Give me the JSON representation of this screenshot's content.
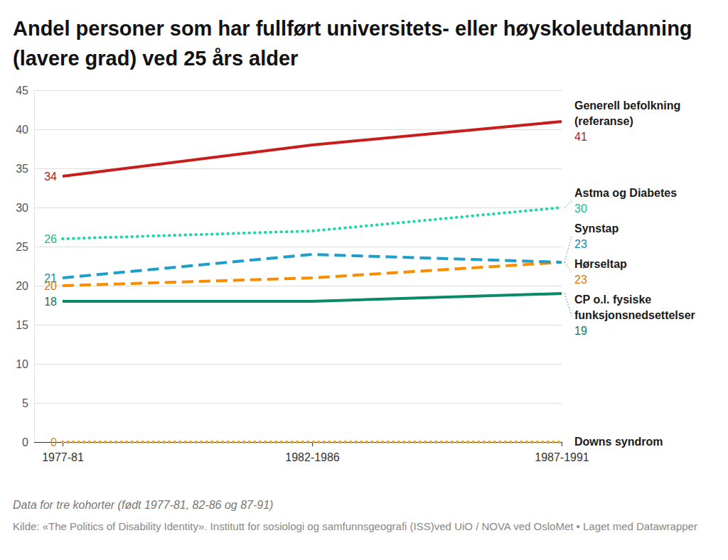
{
  "chart_data": {
    "type": "line",
    "title": "Andel personer som har fullført universitets- eller høyskoleutdanning (lavere grad) ved 25 års alder",
    "note": "Data for tre kohorter (født 1977-81, 82-86 og 87-91)",
    "source": "Kilde: «The Politics of Disability Identity». Institutt for sosiologi og samfunnsgeografi (ISS)ved UiO / NOVA ved OsloMet • Laget med Datawrapper",
    "categories": [
      "1977-81",
      "1982-1986",
      "1987-1991"
    ],
    "series": [
      {
        "name": "Generell befolkning (referanse)",
        "color": "#c71e1d",
        "line_style": "solid",
        "values": [
          34,
          38,
          41
        ],
        "value_labels": [
          "34",
          null,
          "41"
        ]
      },
      {
        "name": "Astma og Diabetes",
        "color": "#19d9a3",
        "line_style": "dotted",
        "values": [
          26,
          27,
          30
        ],
        "value_labels": [
          "26",
          null,
          "30"
        ]
      },
      {
        "name": "Synstap",
        "color": "#1d9fc9",
        "line_style": "dashed",
        "values": [
          21,
          24,
          23
        ],
        "value_labels": [
          "21",
          null,
          "23"
        ]
      },
      {
        "name": "Hørseltap",
        "color": "#fa8c00",
        "line_style": "dashed",
        "values": [
          20,
          21,
          23
        ],
        "value_labels": [
          "20",
          null,
          "23"
        ]
      },
      {
        "name": "CP o.l. fysiske funksjonsnedsettelser",
        "color": "#0b8a6a",
        "line_style": "solid",
        "values": [
          18,
          18,
          19
        ],
        "value_labels": [
          "18",
          null,
          "19"
        ]
      },
      {
        "name": "Downs syndrom",
        "color": "#e0a526",
        "line_style": "dotted",
        "values": [
          0,
          0,
          0
        ],
        "value_labels": [
          "0",
          null,
          null
        ]
      }
    ],
    "ylim": [
      0,
      45
    ],
    "yticks": [
      0,
      5,
      10,
      15,
      20,
      25,
      30,
      35,
      40,
      45
    ],
    "grid": true,
    "data_labels": true
  }
}
